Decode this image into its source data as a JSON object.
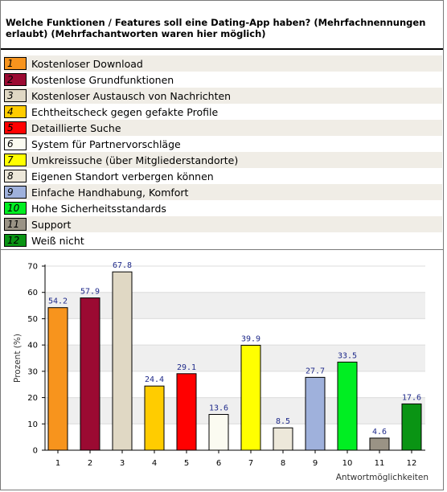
{
  "title": "Welche Funktionen / Features soll eine Dating-App haben? (Mehrfachnennungen erlaubt) (Mehrfachantworten waren hier möglich)",
  "legend": [
    {
      "num": "1",
      "label": "Kostenloser Download",
      "color": "#f7941d"
    },
    {
      "num": "2",
      "label": "Kostenlose Grundfunktionen",
      "color": "#9b0a32"
    },
    {
      "num": "3",
      "label": "Kostenloser Austausch von Nachrichten",
      "color": "#e0d8c4"
    },
    {
      "num": "4",
      "label": "Echtheitscheck gegen gefakte Profile",
      "color": "#ffcc00"
    },
    {
      "num": "5",
      "label": "Detaillierte Suche",
      "color": "#ff0000"
    },
    {
      "num": "6",
      "label": "System für Partnervorschläge",
      "color": "#fbfbf1"
    },
    {
      "num": "7",
      "label": "Umkreissuche (über Mitgliederstandorte)",
      "color": "#ffff00"
    },
    {
      "num": "8",
      "label": "Eigenen Standort verbergen können",
      "color": "#ede8da"
    },
    {
      "num": "9",
      "label": "Einfache Handhabung, Komfort",
      "color": "#9fb1dc"
    },
    {
      "num": "10",
      "label": "Hohe Sicherheitsstandards",
      "color": "#00ee22"
    },
    {
      "num": "11",
      "label": "Support",
      "color": "#9a9385"
    },
    {
      "num": "12",
      "label": "Weiß nicht",
      "color": "#0a9414"
    }
  ],
  "chart_data": {
    "type": "bar",
    "categories": [
      "1",
      "2",
      "3",
      "4",
      "5",
      "6",
      "7",
      "8",
      "9",
      "10",
      "11",
      "12"
    ],
    "values": [
      54.2,
      57.9,
      67.8,
      24.4,
      29.1,
      13.6,
      39.9,
      8.5,
      27.7,
      33.5,
      4.6,
      17.6
    ],
    "value_labels": [
      "54.2",
      "57.9",
      "67.8",
      "24.4",
      "29.1",
      "13.6",
      "39.9",
      "8.5",
      "27.7",
      "33.5",
      "4.6",
      "17.6"
    ],
    "colors": [
      "#f7941d",
      "#9b0a32",
      "#e0d8c4",
      "#ffcc00",
      "#ff0000",
      "#fbfbf1",
      "#ffff00",
      "#ede8da",
      "#9fb1dc",
      "#00ee22",
      "#9a9385",
      "#0a9414"
    ],
    "xlabel": "Antwortmöglichkeiten",
    "ylabel": "Prozent (%)",
    "ylim": [
      0,
      70
    ],
    "yticks": [
      "0",
      "10",
      "20",
      "30",
      "40",
      "50",
      "60",
      "70"
    ],
    "grid": true
  }
}
